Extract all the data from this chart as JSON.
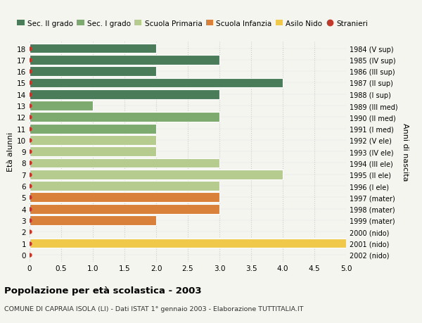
{
  "ages": [
    18,
    17,
    16,
    15,
    14,
    13,
    12,
    11,
    10,
    9,
    8,
    7,
    6,
    5,
    4,
    3,
    2,
    1,
    0
  ],
  "years": [
    "1984 (V sup)",
    "1985 (IV sup)",
    "1986 (III sup)",
    "1987 (II sup)",
    "1988 (I sup)",
    "1989 (III med)",
    "1990 (II med)",
    "1991 (I med)",
    "1992 (V ele)",
    "1993 (IV ele)",
    "1994 (III ele)",
    "1995 (II ele)",
    "1996 (I ele)",
    "1997 (mater)",
    "1998 (mater)",
    "1999 (mater)",
    "2000 (nido)",
    "2001 (nido)",
    "2002 (nido)"
  ],
  "values": [
    2,
    3,
    2,
    4,
    3,
    1,
    3,
    2,
    2,
    2,
    3,
    4,
    3,
    3,
    3,
    2,
    0,
    5,
    0
  ],
  "bar_colors": [
    "#4a7c59",
    "#4a7c59",
    "#4a7c59",
    "#4a7c59",
    "#4a7c59",
    "#7daa6e",
    "#7daa6e",
    "#7daa6e",
    "#b5cc8e",
    "#b5cc8e",
    "#b5cc8e",
    "#b5cc8e",
    "#b5cc8e",
    "#d9813a",
    "#d9813a",
    "#d9813a",
    "#f0c84a",
    "#f0c84a",
    "#f0c84a"
  ],
  "dot_color": "#c0392b",
  "legend_items": [
    {
      "label": "Sec. II grado",
      "color": "#4a7c59"
    },
    {
      "label": "Sec. I grado",
      "color": "#7daa6e"
    },
    {
      "label": "Scuola Primaria",
      "color": "#b5cc8e"
    },
    {
      "label": "Scuola Infanzia",
      "color": "#d9813a"
    },
    {
      "label": "Asilo Nido",
      "color": "#f0c84a"
    },
    {
      "label": "Stranieri",
      "color": "#c0392b"
    }
  ],
  "ylabel_left": "Età alunni",
  "ylabel_right": "Anni di nascita",
  "xlim": [
    0,
    5.0
  ],
  "xticks": [
    0,
    0.5,
    1.0,
    1.5,
    2.0,
    2.5,
    3.0,
    3.5,
    4.0,
    4.5,
    5.0
  ],
  "xticklabels": [
    "0",
    "0.5",
    "1.0",
    "1.5",
    "2.0",
    "2.5",
    "3.0",
    "3.5",
    "4.0",
    "4.5",
    "5.0"
  ],
  "title": "Popolazione per età scolastica - 2003",
  "subtitle": "COMUNE DI CAPRAIA ISOLA (LI) - Dati ISTAT 1° gennaio 2003 - Elaborazione TUTTITALIA.IT",
  "bg_color": "#f5f5f0",
  "bar_height": 0.85,
  "grid_color": "#cccccc",
  "separator_color": "#ffffff"
}
